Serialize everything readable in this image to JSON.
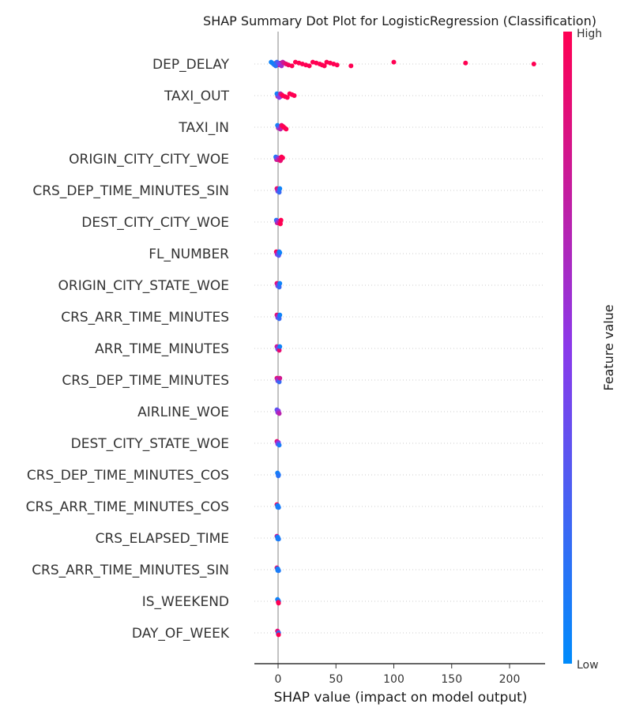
{
  "chart_data": {
    "type": "scatter",
    "subtype": "shap-summary-beeswarm",
    "title": "SHAP Summary Dot Plot for LogisticRegression (Classification)",
    "xlabel": "SHAP value (impact on model output)",
    "xlim": [
      -20,
      230
    ],
    "xticks": [
      0,
      50,
      100,
      150,
      200
    ],
    "grid": "dotted horizontal rows",
    "colorbar": {
      "label": "Feature value",
      "high_label": "High",
      "low_label": "Low",
      "low_color": "#008bfb",
      "mid_color": "#8a39ea",
      "high_color": "#ff0052"
    },
    "features": [
      {
        "name": "DEP_DELAY",
        "points": [
          {
            "x": -6,
            "v": 0.05
          },
          {
            "x": -5,
            "v": 0.05
          },
          {
            "x": -4,
            "v": 0.08
          },
          {
            "x": -3,
            "v": 0.1
          },
          {
            "x": -2,
            "v": 0.15
          },
          {
            "x": -1,
            "v": 0.2
          },
          {
            "x": 0,
            "v": 0.3
          },
          {
            "x": 1,
            "v": 0.4
          },
          {
            "x": 2,
            "v": 0.5
          },
          {
            "x": 3,
            "v": 0.6
          },
          {
            "x": 4,
            "v": 0.7
          },
          {
            "x": 5,
            "v": 0.8
          },
          {
            "x": 7,
            "v": 0.9
          },
          {
            "x": 9,
            "v": 0.95
          },
          {
            "x": 12,
            "v": 1
          },
          {
            "x": 15,
            "v": 1
          },
          {
            "x": 18,
            "v": 1
          },
          {
            "x": 21,
            "v": 1
          },
          {
            "x": 24,
            "v": 1
          },
          {
            "x": 27,
            "v": 1
          },
          {
            "x": 30,
            "v": 1
          },
          {
            "x": 33,
            "v": 1
          },
          {
            "x": 36,
            "v": 1
          },
          {
            "x": 38,
            "v": 1
          },
          {
            "x": 40,
            "v": 1
          },
          {
            "x": 42,
            "v": 1
          },
          {
            "x": 45,
            "v": 1
          },
          {
            "x": 48,
            "v": 1
          },
          {
            "x": 51,
            "v": 1
          },
          {
            "x": 63,
            "v": 1
          },
          {
            "x": 100,
            "v": 1
          },
          {
            "x": 162,
            "v": 1
          },
          {
            "x": 221,
            "v": 1
          }
        ]
      },
      {
        "name": "TAXI_OUT",
        "points": [
          {
            "x": -1,
            "v": 0.05
          },
          {
            "x": -0.5,
            "v": 0.1
          },
          {
            "x": 0,
            "v": 0.15
          },
          {
            "x": 0.5,
            "v": 0.3
          },
          {
            "x": 1,
            "v": 0.5
          },
          {
            "x": 2,
            "v": 0.7
          },
          {
            "x": 3,
            "v": 0.9
          },
          {
            "x": 4,
            "v": 1
          },
          {
            "x": 6,
            "v": 1
          },
          {
            "x": 8,
            "v": 1
          },
          {
            "x": 10,
            "v": 1
          },
          {
            "x": 12,
            "v": 1
          },
          {
            "x": 14,
            "v": 1
          }
        ]
      },
      {
        "name": "TAXI_IN",
        "points": [
          {
            "x": -0.5,
            "v": 0.05
          },
          {
            "x": 0,
            "v": 0.1
          },
          {
            "x": 0.5,
            "v": 0.2
          },
          {
            "x": 1,
            "v": 0.4
          },
          {
            "x": 2,
            "v": 0.7
          },
          {
            "x": 3,
            "v": 0.9
          },
          {
            "x": 4,
            "v": 1
          },
          {
            "x": 5,
            "v": 1
          },
          {
            "x": 6,
            "v": 1
          },
          {
            "x": 7,
            "v": 1
          }
        ]
      },
      {
        "name": "ORIGIN_CITY_CITY_WOE",
        "points": [
          {
            "x": -2,
            "v": 0.1
          },
          {
            "x": -1,
            "v": 0.3
          },
          {
            "x": 0,
            "v": 0.6
          },
          {
            "x": 1,
            "v": 0.8
          },
          {
            "x": 2,
            "v": 0.9
          },
          {
            "x": 3,
            "v": 1
          },
          {
            "x": 4,
            "v": 1
          }
        ]
      },
      {
        "name": "CRS_DEP_TIME_MINUTES_SIN",
        "points": [
          {
            "x": -1,
            "v": 0.9
          },
          {
            "x": -0.5,
            "v": 0.8
          },
          {
            "x": 0,
            "v": 0.7
          },
          {
            "x": 0.5,
            "v": 0.4
          },
          {
            "x": 1,
            "v": 0.2
          },
          {
            "x": 1.5,
            "v": 0.05
          }
        ]
      },
      {
        "name": "DEST_CITY_CITY_WOE",
        "points": [
          {
            "x": -1.5,
            "v": 0.1
          },
          {
            "x": -1,
            "v": 0.3
          },
          {
            "x": 0,
            "v": 0.6
          },
          {
            "x": 1,
            "v": 0.8
          },
          {
            "x": 2,
            "v": 1
          },
          {
            "x": 2.5,
            "v": 1
          }
        ]
      },
      {
        "name": "FL_NUMBER",
        "points": [
          {
            "x": -1.5,
            "v": 1
          },
          {
            "x": -1,
            "v": 0.9
          },
          {
            "x": -0.5,
            "v": 0.7
          },
          {
            "x": 0,
            "v": 0.5
          },
          {
            "x": 0.5,
            "v": 0.3
          },
          {
            "x": 1,
            "v": 0.1
          },
          {
            "x": 1.5,
            "v": 0.05
          }
        ]
      },
      {
        "name": "ORIGIN_CITY_STATE_WOE",
        "points": [
          {
            "x": -1,
            "v": 0.9
          },
          {
            "x": -0.5,
            "v": 0.8
          },
          {
            "x": 0,
            "v": 0.6
          },
          {
            "x": 0.5,
            "v": 0.4
          },
          {
            "x": 1,
            "v": 0.2
          },
          {
            "x": 1.5,
            "v": 0.05
          }
        ]
      },
      {
        "name": "CRS_ARR_TIME_MINUTES",
        "points": [
          {
            "x": -1,
            "v": 0.9
          },
          {
            "x": -0.5,
            "v": 0.8
          },
          {
            "x": 0,
            "v": 0.6
          },
          {
            "x": 0.5,
            "v": 0.4
          },
          {
            "x": 1,
            "v": 0.2
          },
          {
            "x": 1.5,
            "v": 0.05
          }
        ]
      },
      {
        "name": "ARR_TIME_MINUTES",
        "points": [
          {
            "x": -1,
            "v": 0.8
          },
          {
            "x": -0.5,
            "v": 0.7
          },
          {
            "x": 0,
            "v": 0.5
          },
          {
            "x": 0.5,
            "v": 0.3
          },
          {
            "x": 1,
            "v": 0.9
          },
          {
            "x": 1.5,
            "v": 0.05
          }
        ]
      },
      {
        "name": "CRS_DEP_TIME_MINUTES",
        "points": [
          {
            "x": -1,
            "v": 0.9
          },
          {
            "x": -0.5,
            "v": 0.7
          },
          {
            "x": 0,
            "v": 0.6
          },
          {
            "x": 0.5,
            "v": 0.4
          },
          {
            "x": 1,
            "v": 0.2
          },
          {
            "x": 1.5,
            "v": 0.8
          }
        ]
      },
      {
        "name": "AIRLINE_WOE",
        "points": [
          {
            "x": -1,
            "v": 0.3
          },
          {
            "x": -0.5,
            "v": 0.4
          },
          {
            "x": 0,
            "v": 0.5
          },
          {
            "x": 0.5,
            "v": 0.6
          },
          {
            "x": 1,
            "v": 0.7
          }
        ]
      },
      {
        "name": "DEST_CITY_STATE_WOE",
        "points": [
          {
            "x": -1,
            "v": 0.9
          },
          {
            "x": -0.5,
            "v": 0.7
          },
          {
            "x": 0,
            "v": 0.5
          },
          {
            "x": 0.5,
            "v": 0.3
          },
          {
            "x": 1,
            "v": 0.1
          }
        ]
      },
      {
        "name": "CRS_DEP_TIME_MINUTES_COS",
        "points": [
          {
            "x": -0.5,
            "v": 0.1
          },
          {
            "x": 0,
            "v": 0.05
          },
          {
            "x": 0.5,
            "v": 0.1
          },
          {
            "x": 0.2,
            "v": 0.15
          }
        ]
      },
      {
        "name": "CRS_ARR_TIME_MINUTES_COS",
        "points": [
          {
            "x": -1,
            "v": 1
          },
          {
            "x": -0.5,
            "v": 0.1
          },
          {
            "x": 0,
            "v": 0.05
          },
          {
            "x": 0.5,
            "v": 0.1
          }
        ]
      },
      {
        "name": "CRS_ELAPSED_TIME",
        "points": [
          {
            "x": -1,
            "v": 0.8
          },
          {
            "x": -0.5,
            "v": 0.1
          },
          {
            "x": 0,
            "v": 0.05
          },
          {
            "x": 0.5,
            "v": 0.1
          }
        ]
      },
      {
        "name": "CRS_ARR_TIME_MINUTES_SIN",
        "points": [
          {
            "x": -1,
            "v": 0.9
          },
          {
            "x": -0.5,
            "v": 0.1
          },
          {
            "x": 0,
            "v": 0.05
          },
          {
            "x": 0.5,
            "v": 0.1
          }
        ]
      },
      {
        "name": "IS_WEEKEND",
        "points": [
          {
            "x": -0.5,
            "v": 0.05
          },
          {
            "x": 0,
            "v": 0.05
          },
          {
            "x": 0.5,
            "v": 0.05
          },
          {
            "x": 0.2,
            "v": 1
          },
          {
            "x": 0.4,
            "v": 1
          }
        ]
      },
      {
        "name": "DAY_OF_WEEK",
        "points": [
          {
            "x": -0.5,
            "v": 0.9
          },
          {
            "x": 0,
            "v": 0.8
          },
          {
            "x": 0.5,
            "v": 0.2
          },
          {
            "x": 0.2,
            "v": 0.05
          },
          {
            "x": 0.4,
            "v": 1
          }
        ]
      }
    ]
  }
}
